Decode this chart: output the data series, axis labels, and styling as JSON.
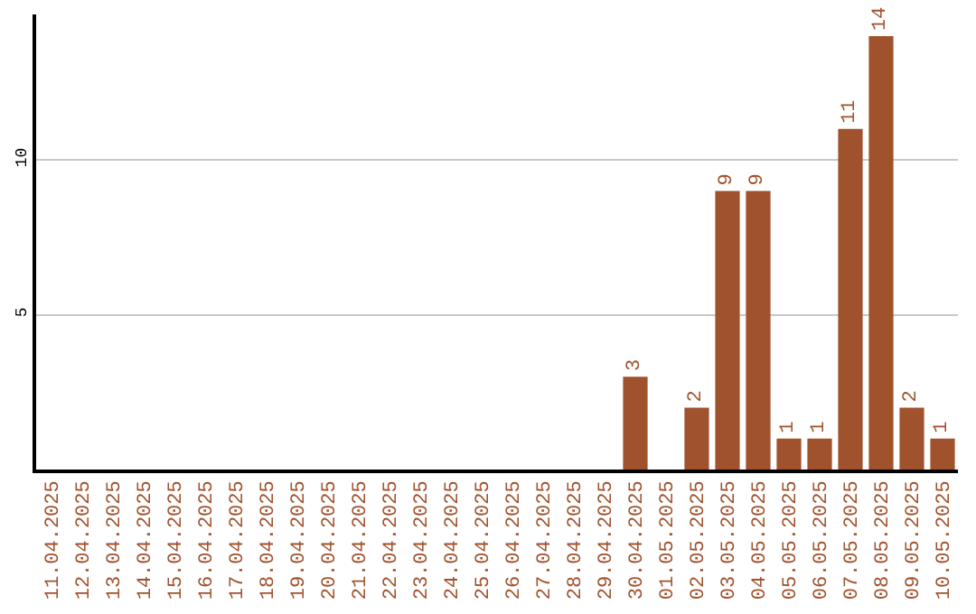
{
  "chart_data": {
    "type": "bar",
    "categories": [
      "11.04.2025",
      "12.04.2025",
      "13.04.2025",
      "14.04.2025",
      "15.04.2025",
      "16.04.2025",
      "17.04.2025",
      "18.04.2025",
      "19.04.2025",
      "20.04.2025",
      "21.04.2025",
      "22.04.2025",
      "23.04.2025",
      "24.04.2025",
      "25.04.2025",
      "26.04.2025",
      "27.04.2025",
      "28.04.2025",
      "29.04.2025",
      "30.04.2025",
      "01.05.2025",
      "02.05.2025",
      "03.05.2025",
      "04.05.2025",
      "05.05.2025",
      "06.05.2025",
      "07.05.2025",
      "08.05.2025",
      "09.05.2025",
      "10.05.2025"
    ],
    "values": [
      0,
      0,
      0,
      0,
      0,
      0,
      0,
      0,
      0,
      0,
      0,
      0,
      0,
      0,
      0,
      0,
      0,
      0,
      0,
      3,
      0,
      2,
      9,
      9,
      1,
      1,
      11,
      14,
      2,
      1
    ],
    "value_labels": [
      null,
      null,
      null,
      null,
      null,
      null,
      null,
      null,
      null,
      null,
      null,
      null,
      null,
      null,
      null,
      null,
      null,
      null,
      null,
      "3",
      null,
      "2",
      "9",
      "9",
      "1",
      "1",
      "11",
      "14",
      "2",
      "1"
    ],
    "color": "#a0522d",
    "ylim": [
      0,
      14.7
    ],
    "yticks": [
      5,
      10
    ],
    "grid": "y",
    "legend": false
  }
}
